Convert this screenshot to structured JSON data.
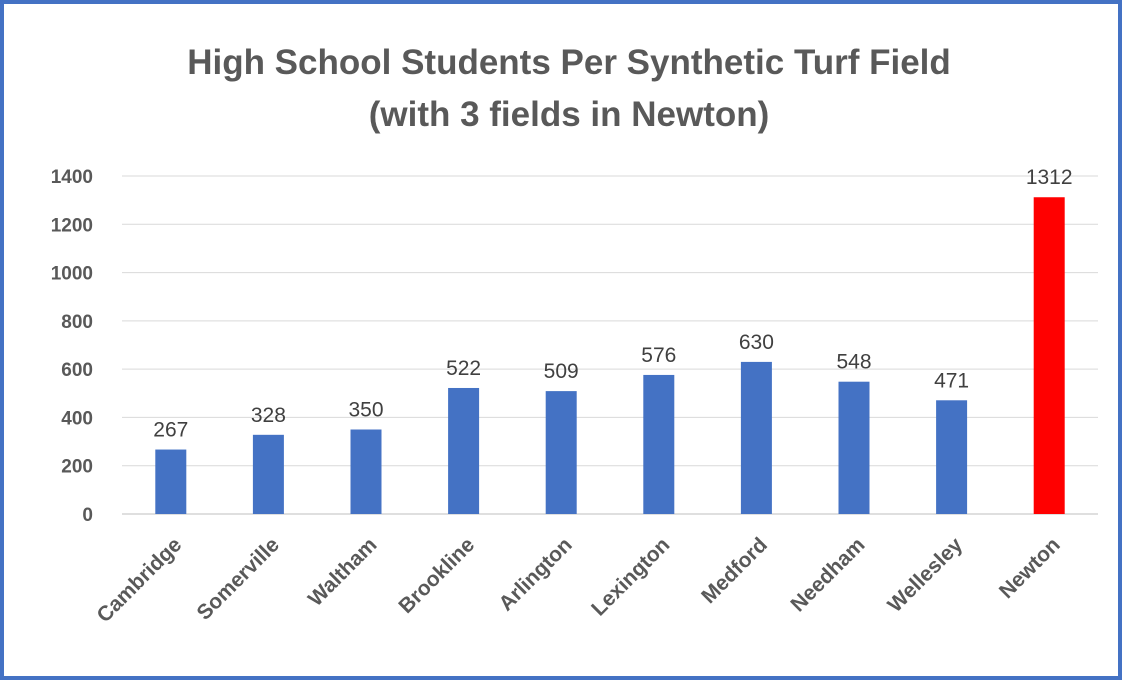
{
  "chart_data": {
    "type": "bar",
    "title": "High School Students Per Synthetic Turf Field",
    "subtitle": "(with 3 fields in Newton)",
    "categories": [
      "Cambridge",
      "Somerville",
      "Waltham",
      "Brookline",
      "Arlington",
      "Lexington",
      "Medford",
      "Needham",
      "Wellesley",
      "Newton"
    ],
    "values": [
      267,
      328,
      350,
      522,
      509,
      576,
      630,
      548,
      471,
      1312
    ],
    "bar_colors": [
      "#4472c4",
      "#4472c4",
      "#4472c4",
      "#4472c4",
      "#4472c4",
      "#4472c4",
      "#4472c4",
      "#4472c4",
      "#4472c4",
      "#ff0000"
    ],
    "ylim": [
      0,
      1400
    ],
    "yticks": [
      0,
      200,
      400,
      600,
      800,
      1000,
      1200,
      1400
    ],
    "xlabel": "",
    "ylabel": "",
    "grid": true,
    "legend": "none",
    "data_labels": true
  },
  "colors": {
    "border": "#4472c4",
    "bar_default": "#4472c4",
    "bar_highlight": "#ff0000",
    "text": "#595959"
  }
}
